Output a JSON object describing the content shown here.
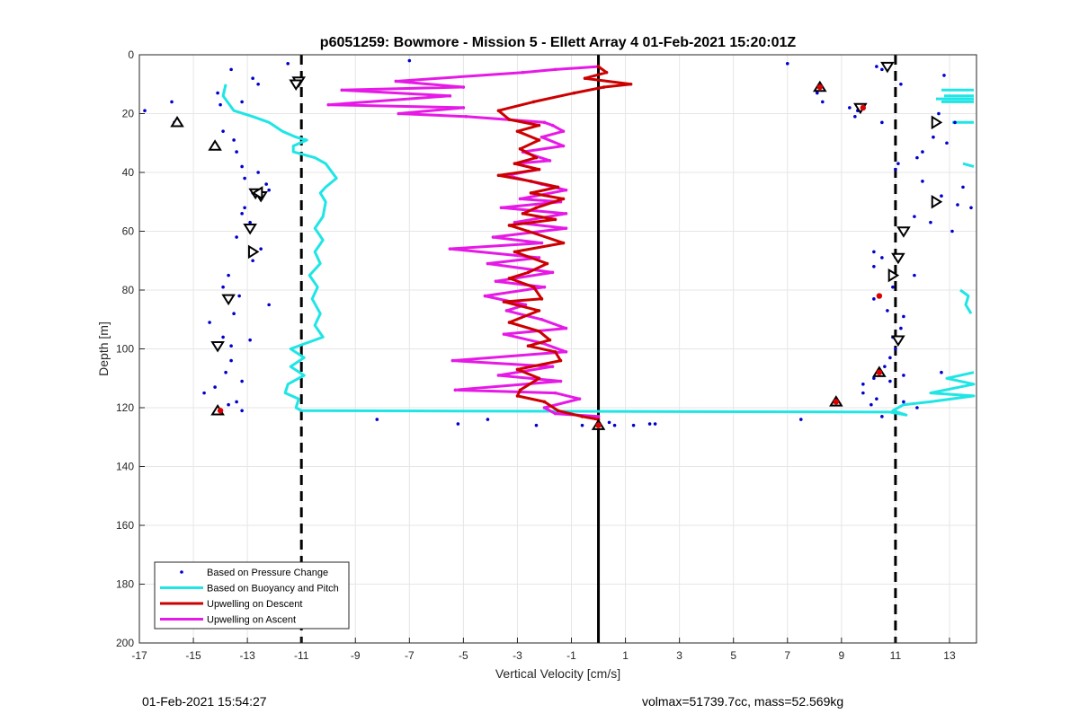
{
  "chart_data": {
    "type": "line",
    "title": "p6051259: Bowmore - Mission 5 - Ellett Array 4 01-Feb-2021 15:20:01Z",
    "xlabel": "Vertical Velocity [cm/s]",
    "ylabel": "Depth [m]",
    "xlim": [
      -17,
      14
    ],
    "ylim": [
      0,
      200
    ],
    "y_reversed": true,
    "grid": true,
    "x_ticks": [
      -17,
      -15,
      -13,
      -11,
      -9,
      -7,
      -5,
      -3,
      -1,
      1,
      3,
      5,
      7,
      9,
      11,
      13
    ],
    "y_ticks": [
      0,
      20,
      40,
      60,
      80,
      100,
      120,
      140,
      160,
      180,
      200
    ],
    "legend_position": "bottom-left",
    "reference_lines": {
      "dashed_x": [
        -11,
        11
      ],
      "solid_x": [
        0
      ],
      "color": "#000000"
    },
    "series": [
      {
        "name": "Based on Pressure Change",
        "style": "dots",
        "color": "#0000cc",
        "points": [
          [
            -11.5,
            3
          ],
          [
            -7,
            2
          ],
          [
            -13.6,
            5
          ],
          [
            -12.8,
            8
          ],
          [
            -12.6,
            10
          ],
          [
            -14.1,
            13
          ],
          [
            -13.2,
            16
          ],
          [
            -15.8,
            16
          ],
          [
            -14,
            17
          ],
          [
            -16.8,
            19
          ],
          [
            -15.7,
            23
          ],
          [
            -13.9,
            26
          ],
          [
            -13.5,
            29
          ],
          [
            -14.2,
            31
          ],
          [
            -13.4,
            33
          ],
          [
            -13.2,
            38
          ],
          [
            -12.6,
            40
          ],
          [
            -13.1,
            42
          ],
          [
            -12.3,
            44
          ],
          [
            -12.8,
            47
          ],
          [
            -12.2,
            46
          ],
          [
            -13.1,
            52
          ],
          [
            -13.2,
            54
          ],
          [
            -12.9,
            57
          ],
          [
            -13.4,
            62
          ],
          [
            -12.5,
            66
          ],
          [
            -12.8,
            70
          ],
          [
            -13.7,
            75
          ],
          [
            -13.9,
            79
          ],
          [
            -13.3,
            82
          ],
          [
            -12.2,
            85
          ],
          [
            -13.5,
            88
          ],
          [
            -14.4,
            91
          ],
          [
            -13.9,
            96
          ],
          [
            -13.6,
            99
          ],
          [
            -12.9,
            97
          ],
          [
            -13.6,
            104
          ],
          [
            -13.8,
            108
          ],
          [
            -13.2,
            111
          ],
          [
            -14.2,
            113
          ],
          [
            -14.6,
            115
          ],
          [
            -13.4,
            118
          ],
          [
            -13.2,
            121
          ],
          [
            -13.7,
            119
          ],
          [
            -8.2,
            124
          ],
          [
            -5.2,
            125.5
          ],
          [
            -4.1,
            124
          ],
          [
            -2.3,
            126
          ],
          [
            -0.6,
            126
          ],
          [
            0.4,
            125
          ],
          [
            0.6,
            126
          ],
          [
            1.3,
            126
          ],
          [
            1.9,
            125.5
          ],
          [
            2.1,
            125.5
          ],
          [
            7.5,
            124
          ],
          [
            7,
            3
          ],
          [
            8.1,
            13
          ],
          [
            8.3,
            16
          ],
          [
            9.3,
            18
          ],
          [
            9.6,
            19
          ],
          [
            9.5,
            21
          ],
          [
            10.3,
            4
          ],
          [
            10.5,
            5
          ],
          [
            10.5,
            23
          ],
          [
            12.8,
            7
          ],
          [
            11.2,
            10
          ],
          [
            12.6,
            20
          ],
          [
            13.2,
            23
          ],
          [
            12.4,
            28
          ],
          [
            12.9,
            30
          ],
          [
            12,
            33
          ],
          [
            11.8,
            35
          ],
          [
            11.1,
            37
          ],
          [
            11,
            39
          ],
          [
            12,
            43
          ],
          [
            13.5,
            45
          ],
          [
            12.7,
            48
          ],
          [
            13.3,
            51
          ],
          [
            11.7,
            55
          ],
          [
            12.3,
            57
          ],
          [
            13.1,
            60
          ],
          [
            13.8,
            52
          ],
          [
            10.2,
            67
          ],
          [
            10.5,
            69
          ],
          [
            10.2,
            72
          ],
          [
            10.8,
            76
          ],
          [
            11.7,
            75
          ],
          [
            10.9,
            79
          ],
          [
            10.2,
            83
          ],
          [
            10.7,
            87
          ],
          [
            11.3,
            89
          ],
          [
            11.2,
            93
          ],
          [
            10.9,
            96
          ],
          [
            11,
            100
          ],
          [
            10.8,
            103
          ],
          [
            10.6,
            106
          ],
          [
            10.8,
            111
          ],
          [
            11.3,
            109
          ],
          [
            12.7,
            108
          ],
          [
            10.2,
            110
          ],
          [
            9.8,
            112
          ],
          [
            9.8,
            115
          ],
          [
            10.3,
            117
          ],
          [
            10.1,
            119
          ],
          [
            11.3,
            118
          ],
          [
            10.5,
            123
          ],
          [
            11.8,
            120
          ]
        ]
      },
      {
        "name": "Based on Buoyancy and Pitch",
        "style": "line",
        "color": "#1fe5e5",
        "segments": [
          [
            [
              -13.8,
              10
            ],
            [
              -13.9,
              14
            ],
            [
              -13.5,
              19
            ],
            [
              -12.8,
              21
            ],
            [
              -12.2,
              23
            ],
            [
              -11.7,
              26
            ],
            [
              -11.2,
              28
            ],
            [
              -10.8,
              29
            ],
            [
              -11.3,
              31
            ],
            [
              -11.3,
              33
            ],
            [
              -10.5,
              35
            ],
            [
              -10.1,
              37
            ],
            [
              -9.7,
              42
            ],
            [
              -10.1,
              45
            ],
            [
              -10.3,
              47
            ],
            [
              -10.1,
              50
            ],
            [
              -10.2,
              55
            ],
            [
              -10.5,
              59
            ],
            [
              -10.2,
              63
            ],
            [
              -10.5,
              67
            ],
            [
              -10.3,
              71
            ],
            [
              -10.7,
              75
            ],
            [
              -10.4,
              79
            ],
            [
              -10.6,
              83
            ],
            [
              -10.3,
              88
            ],
            [
              -10.5,
              92
            ],
            [
              -10.2,
              96
            ],
            [
              -10.8,
              98
            ],
            [
              -11.4,
              100
            ],
            [
              -10.9,
              103
            ],
            [
              -11.4,
              106
            ],
            [
              -10.9,
              109
            ],
            [
              -11.5,
              112
            ],
            [
              -11.6,
              115
            ],
            [
              -11.1,
              117
            ],
            [
              -11.2,
              120
            ],
            [
              -11,
              121
            ],
            [
              10.8,
              121.5
            ],
            [
              11.4,
              122.5
            ],
            [
              10.9,
              121
            ],
            [
              11.3,
              119
            ],
            [
              12.3,
              118
            ],
            [
              13.9,
              116
            ],
            [
              12.3,
              115
            ],
            [
              13.9,
              112
            ],
            [
              12.9,
              110
            ],
            [
              13.9,
              108
            ]
          ],
          [
            [
              12.7,
              12
            ],
            [
              13.9,
              12
            ]
          ],
          [
            [
              12.8,
              14
            ],
            [
              13.9,
              14
            ]
          ],
          [
            [
              12.5,
              15
            ],
            [
              13.9,
              15
            ]
          ],
          [
            [
              12.7,
              16
            ],
            [
              13.9,
              16
            ]
          ],
          [
            [
              13.1,
              23
            ],
            [
              13.9,
              23
            ]
          ],
          [
            [
              13.5,
              37
            ],
            [
              13.9,
              38
            ]
          ],
          [
            [
              13.4,
              80
            ],
            [
              13.7,
              82
            ],
            [
              13.6,
              85
            ],
            [
              13.8,
              88
            ]
          ]
        ]
      },
      {
        "name": "Upwelling on Descent",
        "style": "line",
        "color": "#cc0000",
        "points": [
          [
            0,
            4
          ],
          [
            0.3,
            6
          ],
          [
            -0.5,
            8
          ],
          [
            1.2,
            10
          ],
          [
            0.2,
            11
          ],
          [
            -0.9,
            13
          ],
          [
            -2.4,
            16
          ],
          [
            -3.7,
            19
          ],
          [
            -3.3,
            22
          ],
          [
            -2.2,
            24
          ],
          [
            -3,
            26
          ],
          [
            -2.2,
            29
          ],
          [
            -2.9,
            32
          ],
          [
            -2.3,
            35
          ],
          [
            -3.1,
            37
          ],
          [
            -2.2,
            39
          ],
          [
            -3.7,
            41
          ],
          [
            -2.5,
            43
          ],
          [
            -1.5,
            45
          ],
          [
            -2.5,
            47
          ],
          [
            -1.3,
            49
          ],
          [
            -2.3,
            52
          ],
          [
            -2.8,
            54
          ],
          [
            -1.6,
            56
          ],
          [
            -3.3,
            58
          ],
          [
            -2.6,
            60
          ],
          [
            -1.3,
            64
          ],
          [
            -3.1,
            67
          ],
          [
            -1.9,
            71
          ],
          [
            -2.6,
            74
          ],
          [
            -3.3,
            76
          ],
          [
            -2.4,
            79
          ],
          [
            -2.1,
            83
          ],
          [
            -3.5,
            84
          ],
          [
            -2.2,
            87
          ],
          [
            -3.3,
            91
          ],
          [
            -2.2,
            94
          ],
          [
            -1.8,
            97
          ],
          [
            -2.6,
            99
          ],
          [
            -1.6,
            101
          ],
          [
            -1.4,
            104
          ],
          [
            -3,
            107
          ],
          [
            -2.2,
            110
          ],
          [
            -2.9,
            114
          ],
          [
            -3,
            116
          ],
          [
            -2,
            118
          ],
          [
            -1.5,
            121
          ],
          [
            -0.6,
            123
          ],
          [
            0,
            124
          ]
        ]
      },
      {
        "name": "Upwelling on Ascent",
        "style": "line",
        "color": "#e619e6",
        "points": [
          [
            0,
            4
          ],
          [
            -1.6,
            5
          ],
          [
            -2.8,
            6
          ],
          [
            -7.5,
            9
          ],
          [
            -5,
            11
          ],
          [
            -9.5,
            12
          ],
          [
            -5.5,
            14
          ],
          [
            -10,
            17
          ],
          [
            -5,
            18
          ],
          [
            -7.4,
            20
          ],
          [
            -4.9,
            21
          ],
          [
            -2,
            23
          ],
          [
            -1.7,
            24
          ],
          [
            -1.3,
            26
          ],
          [
            -2.1,
            28
          ],
          [
            -1.3,
            31
          ],
          [
            -2.8,
            33
          ],
          [
            -1.8,
            36
          ],
          [
            -3.1,
            37
          ],
          [
            -2.2,
            39
          ],
          [
            -3.4,
            41
          ],
          [
            -2.1,
            44
          ],
          [
            -1.2,
            46
          ],
          [
            -2.9,
            49
          ],
          [
            -1.4,
            50
          ],
          [
            -3.6,
            52
          ],
          [
            -1.2,
            54
          ],
          [
            -3.1,
            57
          ],
          [
            -1.2,
            59
          ],
          [
            -3.9,
            62
          ],
          [
            -2.1,
            64
          ],
          [
            -5.5,
            66
          ],
          [
            -2.2,
            69
          ],
          [
            -4.1,
            71
          ],
          [
            -1.7,
            74
          ],
          [
            -3.8,
            77
          ],
          [
            -2,
            79
          ],
          [
            -4.2,
            82
          ],
          [
            -2.7,
            85
          ],
          [
            -3.4,
            87
          ],
          [
            -2.1,
            90
          ],
          [
            -1.2,
            93
          ],
          [
            -3.5,
            95
          ],
          [
            -2.1,
            98
          ],
          [
            -1.2,
            101
          ],
          [
            -5.4,
            104
          ],
          [
            -1.7,
            106
          ],
          [
            -3.7,
            109
          ],
          [
            -1.4,
            111
          ],
          [
            -5.3,
            114
          ],
          [
            -1.6,
            115
          ],
          [
            -0.7,
            117
          ],
          [
            -2,
            120
          ],
          [
            -1.6,
            122
          ],
          [
            0,
            123
          ]
        ]
      }
    ],
    "markers": {
      "down_triangles": [
        [
          -11.1,
          9
        ],
        [
          -11.2,
          10
        ],
        [
          -12.5,
          48
        ],
        [
          -12.7,
          47
        ],
        [
          -12.9,
          59
        ],
        [
          -13.7,
          83
        ],
        [
          -14.1,
          99
        ],
        [
          10.7,
          4
        ],
        [
          9.7,
          18
        ],
        [
          11.3,
          60
        ],
        [
          11.1,
          69
        ],
        [
          11.1,
          97
        ]
      ],
      "up_triangles": [
        [
          -15.6,
          23
        ],
        [
          -14.2,
          31
        ],
        [
          8.2,
          11
        ],
        [
          8.8,
          118
        ],
        [
          -14.1,
          121
        ],
        [
          10.4,
          108
        ],
        [
          0,
          126
        ]
      ],
      "right_triangles": [
        [
          -12.8,
          67
        ],
        [
          12.5,
          23
        ],
        [
          12.5,
          50
        ],
        [
          10.9,
          75
        ]
      ],
      "left_triangles": [
        [
          -12.6,
          47
        ]
      ],
      "red_dots": [
        [
          -14,
          121
        ],
        [
          8.2,
          11
        ],
        [
          9.8,
          18
        ],
        [
          10.4,
          82
        ],
        [
          10.4,
          108
        ],
        [
          8.8,
          118
        ],
        [
          0,
          126
        ]
      ]
    }
  },
  "footer": {
    "timestamp": "01-Feb-2021 15:54:27",
    "metadata": "volmax=51739.7cc, mass=52.569kg"
  }
}
